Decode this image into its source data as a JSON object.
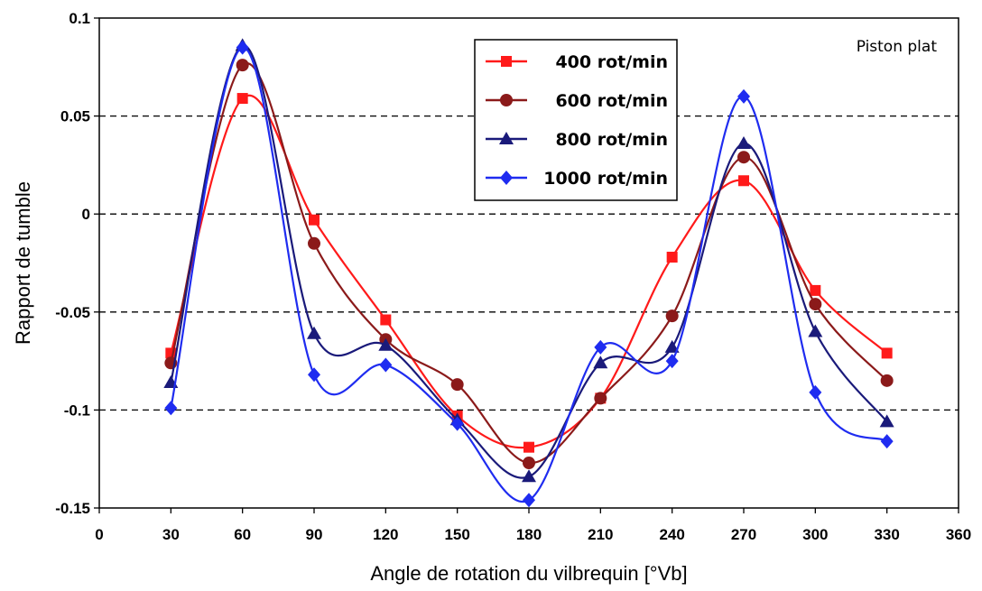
{
  "chart_data": {
    "type": "line",
    "title": "",
    "xlabel": "Angle de rotation du vilbrequin [°Vb]",
    "ylabel": "Rapport de tumble",
    "xlim": [
      0,
      360
    ],
    "ylim": [
      -0.15,
      0.1
    ],
    "x_ticks": [
      0,
      30,
      60,
      90,
      120,
      150,
      180,
      210,
      240,
      270,
      300,
      330,
      360
    ],
    "x_tick_labels": [
      "0",
      "30",
      "60",
      "90",
      "120",
      "150",
      "180",
      "210",
      "240",
      "270",
      "300",
      "330",
      "360"
    ],
    "y_ticks": [
      -0.15,
      -0.1,
      -0.05,
      0,
      0.05,
      0.1
    ],
    "y_tick_labels": [
      "-0.15",
      "-0.1",
      "-0.05",
      "0",
      "0.05",
      "0.1"
    ],
    "grid": "dashed horizontal at -0.1, -0.05, 0, 0.05",
    "annotation": "Piston plat",
    "legend_position": "top-center",
    "x": [
      30,
      60,
      90,
      120,
      150,
      180,
      210,
      240,
      270,
      300,
      330
    ],
    "series": [
      {
        "name": "400 rot/min",
        "color": "#ff1a1a",
        "marker": "square",
        "values": [
          -0.071,
          0.059,
          -0.003,
          -0.054,
          -0.103,
          -0.119,
          -0.094,
          -0.022,
          0.017,
          -0.039,
          -0.071
        ]
      },
      {
        "name": "600 rot/min",
        "color": "#8b1a1a",
        "marker": "circle",
        "values": [
          -0.076,
          0.076,
          -0.015,
          -0.064,
          -0.087,
          -0.127,
          -0.094,
          -0.052,
          0.029,
          -0.046,
          -0.085
        ]
      },
      {
        "name": "800 rot/min",
        "color": "#1a1a7a",
        "marker": "triangle",
        "values": [
          -0.086,
          0.086,
          -0.061,
          -0.067,
          -0.105,
          -0.134,
          -0.076,
          -0.068,
          0.036,
          -0.06,
          -0.106
        ]
      },
      {
        "name": "1000 rot/min",
        "color": "#1f2cf0",
        "marker": "diamond",
        "values": [
          -0.099,
          0.085,
          -0.082,
          -0.077,
          -0.107,
          -0.146,
          -0.068,
          -0.075,
          0.06,
          -0.091,
          -0.116
        ]
      }
    ]
  }
}
